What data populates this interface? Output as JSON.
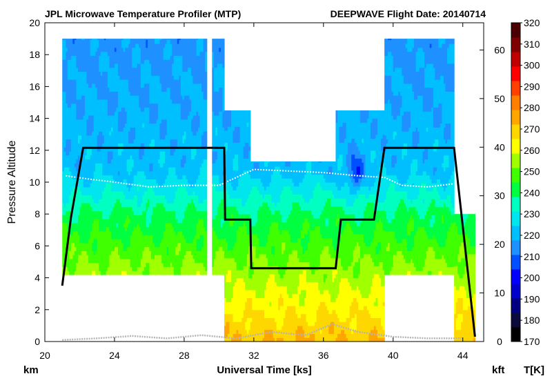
{
  "chart_data": {
    "type": "heatmap",
    "title": "JPL Microwave Temperature Profiler (MTP)",
    "subtitle": "DEEPWAVE  Flight Date: 20140714",
    "xlabel": "Universal Time [ks]",
    "ylabel": "Pressure Altitude",
    "left_unit": "km",
    "right_unit": "kft",
    "colorbar_unit": "T[K]",
    "xlim": [
      20,
      45.2
    ],
    "ylim": [
      0,
      20
    ],
    "y2lim": [
      0,
      65.6
    ],
    "xticks": [
      20,
      24,
      28,
      32,
      36,
      40,
      44
    ],
    "yticks": [
      0,
      2,
      4,
      6,
      8,
      10,
      12,
      14,
      16,
      18,
      20
    ],
    "y2ticks": [
      0,
      10,
      20,
      30,
      40,
      50,
      60
    ],
    "colorbar": {
      "min": 170,
      "max": 320,
      "ticks": [
        170,
        180,
        190,
        200,
        210,
        220,
        230,
        240,
        250,
        260,
        270,
        280,
        290,
        300,
        310,
        320
      ],
      "colors": [
        "#000000",
        "#0a0a3c",
        "#000080",
        "#0000cd",
        "#0000ff",
        "#0050ff",
        "#1e90ff",
        "#00bfff",
        "#00e5ee",
        "#00ffc0",
        "#00ff40",
        "#40ff00",
        "#a0ff00",
        "#ffff00",
        "#ffd700",
        "#ffa500",
        "#ff8000",
        "#ff4000",
        "#ff0000",
        "#c00000",
        "#800000",
        "#4a0000"
      ]
    },
    "temperature_profile_note": "Temperature decreases with altitude from ~270 K near surface to ~215 K in upper levels",
    "flight_segments": [
      {
        "x_start": 21.0,
        "x_end": 29.3,
        "profile_top_km": 19.0,
        "profile_bottom_km": 4.2
      },
      {
        "x_start": 29.6,
        "x_end": 30.3,
        "profile_top_km": 19.0,
        "profile_bottom_km": 4.2
      },
      {
        "x_start": 30.3,
        "x_end": 31.8,
        "profile_top_km": 14.5,
        "profile_bottom_km": 0
      },
      {
        "x_start": 31.8,
        "x_end": 36.7,
        "profile_top_km": 11.3,
        "profile_bottom_km": 0
      },
      {
        "x_start": 36.7,
        "x_end": 39.5,
        "profile_top_km": 14.5,
        "profile_bottom_km": 0
      },
      {
        "x_start": 39.5,
        "x_end": 43.5,
        "profile_top_km": 19.0,
        "profile_bottom_km": 4.2
      },
      {
        "x_start": 43.5,
        "x_end": 44.7,
        "profile_top_km": 8.0,
        "profile_bottom_km": 0
      }
    ],
    "flight_altitude_km": [
      {
        "x": 21.0,
        "y": 3.5
      },
      {
        "x": 21.5,
        "y": 7.8
      },
      {
        "x": 22.2,
        "y": 12.15
      },
      {
        "x": 30.3,
        "y": 12.15
      },
      {
        "x": 30.35,
        "y": 7.65
      },
      {
        "x": 31.8,
        "y": 7.65
      },
      {
        "x": 31.85,
        "y": 4.6
      },
      {
        "x": 36.7,
        "y": 4.6
      },
      {
        "x": 37.0,
        "y": 7.65
      },
      {
        "x": 38.9,
        "y": 7.65
      },
      {
        "x": 39.5,
        "y": 12.15
      },
      {
        "x": 43.5,
        "y": 12.15
      },
      {
        "x": 44.7,
        "y": 0.3
      }
    ],
    "tropopause_km": [
      {
        "x": 21.2,
        "y": 10.4
      },
      {
        "x": 22.5,
        "y": 10.2
      },
      {
        "x": 24.0,
        "y": 10.0
      },
      {
        "x": 26.0,
        "y": 9.7
      },
      {
        "x": 28.0,
        "y": 9.8
      },
      {
        "x": 30.0,
        "y": 9.8
      },
      {
        "x": 32.0,
        "y": 10.8
      },
      {
        "x": 34.0,
        "y": 10.7
      },
      {
        "x": 36.0,
        "y": 10.6
      },
      {
        "x": 38.0,
        "y": 10.4
      },
      {
        "x": 39.5,
        "y": 10.3
      },
      {
        "x": 40.5,
        "y": 9.8
      },
      {
        "x": 42.0,
        "y": 9.7
      },
      {
        "x": 43.5,
        "y": 9.9
      }
    ],
    "ground_km": [
      {
        "x": 21.0,
        "y": 0.1
      },
      {
        "x": 23.0,
        "y": 0.2
      },
      {
        "x": 25.0,
        "y": 0.35
      },
      {
        "x": 27.0,
        "y": 0.2
      },
      {
        "x": 29.0,
        "y": 0.4
      },
      {
        "x": 31.0,
        "y": 0.2
      },
      {
        "x": 33.0,
        "y": 0.6
      },
      {
        "x": 35.0,
        "y": 0.4
      },
      {
        "x": 36.5,
        "y": 1.1
      },
      {
        "x": 38.0,
        "y": 0.6
      },
      {
        "x": 40.0,
        "y": 0.3
      },
      {
        "x": 42.0,
        "y": 0.2
      },
      {
        "x": 44.0,
        "y": 0.2
      }
    ],
    "cold_anomaly": {
      "x": 37.8,
      "y": 10.4,
      "temp_K": 205
    }
  }
}
